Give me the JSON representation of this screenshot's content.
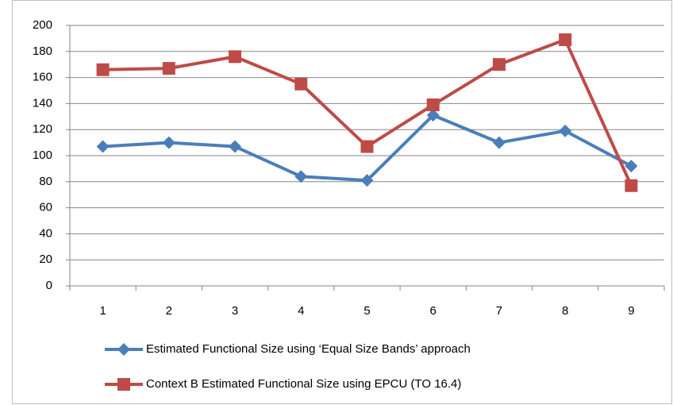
{
  "chart_data": {
    "type": "line",
    "categories": [
      "1",
      "2",
      "3",
      "4",
      "5",
      "6",
      "7",
      "8",
      "9"
    ],
    "series": [
      {
        "name": "Estimated Functional Size using ‘Equal Size Bands’ approach",
        "color": "#4a7ebb",
        "marker": "diamond",
        "values": [
          107,
          110,
          107,
          84,
          81,
          131,
          110,
          119,
          92
        ]
      },
      {
        "name": "Context B Estimated Functional Size using EPCU (TO 16.4)",
        "color": "#be4b48",
        "marker": "square",
        "values": [
          166,
          167,
          176,
          155,
          107,
          139,
          170,
          189,
          77
        ]
      }
    ],
    "ylim": [
      0,
      200
    ],
    "yticks": [
      0,
      20,
      40,
      60,
      80,
      100,
      120,
      140,
      160,
      180,
      200
    ],
    "grid": true,
    "legend": "bottom"
  }
}
